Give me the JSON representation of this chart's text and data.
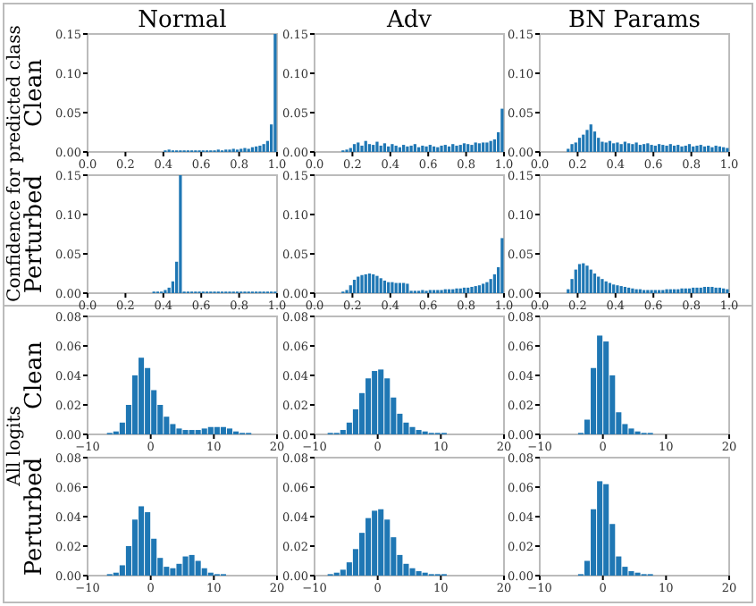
{
  "chart_data": [
    {
      "type": "histogram",
      "title": "Normal",
      "ylabel": "Clean",
      "annotations": [
        "Confidence for predicted class"
      ],
      "color": "#1f77b4",
      "bins": [
        0.4,
        0.42,
        0.44,
        0.46,
        0.48,
        0.5,
        0.52,
        0.54,
        0.56,
        0.58,
        0.6,
        0.62,
        0.64,
        0.66,
        0.68,
        0.7,
        0.72,
        0.74,
        0.76,
        0.78,
        0.8,
        0.82,
        0.84,
        0.86,
        0.88,
        0.9,
        0.92,
        0.94,
        0.96,
        0.98,
        1.0
      ],
      "values": [
        0.002,
        0.003,
        0.002,
        0.002,
        0.002,
        0.002,
        0.002,
        0.002,
        0.002,
        0.002,
        0.002,
        0.002,
        0.002,
        0.002,
        0.003,
        0.002,
        0.003,
        0.003,
        0.004,
        0.003,
        0.004,
        0.005,
        0.004,
        0.006,
        0.007,
        0.008,
        0.01,
        0.014,
        0.035,
        0.15
      ],
      "xlim": [
        0,
        1
      ],
      "ylim": [
        0,
        0.15
      ],
      "xticks": [
        {
          "value": 0,
          "label": "0.0"
        },
        {
          "value": 0.2,
          "label": "0.2"
        },
        {
          "value": 0.4,
          "label": "0.4"
        },
        {
          "value": 0.6,
          "label": "0.6"
        },
        {
          "value": 0.8,
          "label": "0.8"
        },
        {
          "value": 1,
          "label": "1.0"
        }
      ],
      "yticks": [
        {
          "value": 0,
          "label": "0.00"
        },
        {
          "value": 0.05,
          "label": "0.05"
        },
        {
          "value": 0.1,
          "label": "0.10"
        },
        {
          "value": 0.15,
          "label": "0.15"
        }
      ]
    },
    {
      "type": "histogram",
      "title": "Adv",
      "color": "#1f77b4",
      "bins": [
        0.14,
        0.16,
        0.18,
        0.2,
        0.22,
        0.24,
        0.26,
        0.28,
        0.3,
        0.32,
        0.34,
        0.36,
        0.38,
        0.4,
        0.42,
        0.44,
        0.46,
        0.48,
        0.5,
        0.52,
        0.54,
        0.56,
        0.58,
        0.6,
        0.62,
        0.64,
        0.66,
        0.68,
        0.7,
        0.72,
        0.74,
        0.76,
        0.78,
        0.8,
        0.82,
        0.84,
        0.86,
        0.88,
        0.9,
        0.92,
        0.94,
        0.96,
        0.98,
        1.0
      ],
      "values": [
        0.002,
        0.003,
        0.005,
        0.01,
        0.012,
        0.008,
        0.014,
        0.01,
        0.009,
        0.013,
        0.008,
        0.011,
        0.007,
        0.01,
        0.008,
        0.006,
        0.009,
        0.007,
        0.008,
        0.01,
        0.006,
        0.008,
        0.007,
        0.009,
        0.007,
        0.006,
        0.008,
        0.009,
        0.007,
        0.01,
        0.008,
        0.009,
        0.011,
        0.01,
        0.009,
        0.012,
        0.011,
        0.012,
        0.012,
        0.014,
        0.016,
        0.025,
        0.055
      ],
      "xlim": [
        0,
        1
      ],
      "ylim": [
        0,
        0.15
      ],
      "xticks": [
        {
          "value": 0,
          "label": "0.0"
        },
        {
          "value": 0.2,
          "label": "0.2"
        },
        {
          "value": 0.4,
          "label": "0.4"
        },
        {
          "value": 0.6,
          "label": "0.6"
        },
        {
          "value": 0.8,
          "label": "0.8"
        },
        {
          "value": 1,
          "label": "1.0"
        }
      ],
      "yticks": [
        {
          "value": 0,
          "label": "0.00"
        },
        {
          "value": 0.05,
          "label": "0.05"
        },
        {
          "value": 0.1,
          "label": "0.10"
        },
        {
          "value": 0.15,
          "label": "0.15"
        }
      ]
    },
    {
      "type": "histogram",
      "title": "BN Params",
      "color": "#1f77b4",
      "bins": [
        0.14,
        0.16,
        0.18,
        0.2,
        0.22,
        0.24,
        0.26,
        0.28,
        0.3,
        0.32,
        0.34,
        0.36,
        0.38,
        0.4,
        0.42,
        0.44,
        0.46,
        0.48,
        0.5,
        0.52,
        0.54,
        0.56,
        0.58,
        0.6,
        0.62,
        0.64,
        0.66,
        0.68,
        0.7,
        0.72,
        0.74,
        0.76,
        0.78,
        0.8,
        0.82,
        0.84,
        0.86,
        0.88,
        0.9,
        0.92,
        0.94,
        0.96,
        0.98,
        1.0
      ],
      "values": [
        0.004,
        0.01,
        0.012,
        0.018,
        0.022,
        0.028,
        0.035,
        0.026,
        0.018,
        0.013,
        0.012,
        0.014,
        0.011,
        0.012,
        0.01,
        0.013,
        0.011,
        0.01,
        0.012,
        0.009,
        0.01,
        0.011,
        0.009,
        0.008,
        0.01,
        0.009,
        0.008,
        0.01,
        0.008,
        0.009,
        0.007,
        0.008,
        0.01,
        0.007,
        0.008,
        0.009,
        0.007,
        0.008,
        0.006,
        0.008,
        0.007,
        0.006,
        0.005
      ],
      "xlim": [
        0,
        1
      ],
      "ylim": [
        0,
        0.15
      ],
      "xticks": [
        {
          "value": 0,
          "label": "0.0"
        },
        {
          "value": 0.2,
          "label": "0.2"
        },
        {
          "value": 0.4,
          "label": "0.4"
        },
        {
          "value": 0.6,
          "label": "0.6"
        },
        {
          "value": 0.8,
          "label": "0.8"
        },
        {
          "value": 1,
          "label": "1.0"
        }
      ],
      "yticks": [
        {
          "value": 0,
          "label": "0.00"
        },
        {
          "value": 0.05,
          "label": "0.05"
        },
        {
          "value": 0.1,
          "label": "0.10"
        },
        {
          "value": 0.15,
          "label": "0.15"
        }
      ]
    },
    {
      "type": "histogram",
      "ylabel": "Perturbed",
      "color": "#1f77b4",
      "bins": [
        0.34,
        0.36,
        0.38,
        0.4,
        0.42,
        0.44,
        0.46,
        0.48,
        0.5,
        0.52,
        0.54,
        0.56,
        0.58,
        0.6,
        0.62,
        0.64,
        0.66,
        0.68,
        0.7,
        0.72,
        0.74,
        0.76,
        0.78,
        0.8,
        0.82,
        0.84,
        0.86,
        0.88,
        0.9,
        0.92,
        0.94,
        0.96,
        0.98,
        1.0
      ],
      "values": [
        0.002,
        0.002,
        0.002,
        0.004,
        0.007,
        0.015,
        0.04,
        0.15,
        0.002,
        0.002,
        0.002,
        0.002,
        0.002,
        0.002,
        0.002,
        0.002,
        0.002,
        0.002,
        0.002,
        0.002,
        0.002,
        0.002,
        0.002,
        0.002,
        0.002,
        0.002,
        0.002,
        0.002,
        0.002,
        0.002,
        0.002,
        0.002,
        0.002
      ],
      "xlim": [
        0,
        1
      ],
      "ylim": [
        0,
        0.15
      ],
      "xticks": [
        {
          "value": 0,
          "label": "0.0"
        },
        {
          "value": 0.2,
          "label": "0.2"
        },
        {
          "value": 0.4,
          "label": "0.4"
        },
        {
          "value": 0.6,
          "label": "0.6"
        },
        {
          "value": 0.8,
          "label": "0.8"
        },
        {
          "value": 1,
          "label": "1.0"
        }
      ],
      "yticks": [
        {
          "value": 0,
          "label": "0.00"
        },
        {
          "value": 0.05,
          "label": "0.05"
        },
        {
          "value": 0.1,
          "label": "0.10"
        },
        {
          "value": 0.15,
          "label": "0.15"
        }
      ]
    },
    {
      "type": "histogram",
      "color": "#1f77b4",
      "bins": [
        0.14,
        0.16,
        0.18,
        0.2,
        0.22,
        0.24,
        0.26,
        0.28,
        0.3,
        0.32,
        0.34,
        0.36,
        0.38,
        0.4,
        0.42,
        0.44,
        0.46,
        0.48,
        0.5,
        0.52,
        0.54,
        0.56,
        0.58,
        0.6,
        0.62,
        0.64,
        0.66,
        0.68,
        0.7,
        0.72,
        0.74,
        0.76,
        0.78,
        0.8,
        0.82,
        0.84,
        0.86,
        0.88,
        0.9,
        0.92,
        0.94,
        0.96,
        0.98,
        1.0
      ],
      "values": [
        0.002,
        0.004,
        0.01,
        0.017,
        0.021,
        0.023,
        0.024,
        0.025,
        0.024,
        0.022,
        0.019,
        0.016,
        0.014,
        0.014,
        0.013,
        0.013,
        0.013,
        0.012,
        0.003,
        0.003,
        0.003,
        0.004,
        0.003,
        0.004,
        0.004,
        0.004,
        0.004,
        0.005,
        0.005,
        0.005,
        0.006,
        0.006,
        0.007,
        0.007,
        0.008,
        0.009,
        0.01,
        0.012,
        0.014,
        0.018,
        0.024,
        0.033,
        0.07
      ],
      "xlim": [
        0,
        1
      ],
      "ylim": [
        0,
        0.15
      ],
      "xticks": [
        {
          "value": 0,
          "label": "0.0"
        },
        {
          "value": 0.2,
          "label": "0.2"
        },
        {
          "value": 0.4,
          "label": "0.4"
        },
        {
          "value": 0.6,
          "label": "0.6"
        },
        {
          "value": 0.8,
          "label": "0.8"
        },
        {
          "value": 1,
          "label": "1.0"
        }
      ],
      "yticks": [
        {
          "value": 0,
          "label": "0.00"
        },
        {
          "value": 0.05,
          "label": "0.05"
        },
        {
          "value": 0.1,
          "label": "0.10"
        },
        {
          "value": 0.15,
          "label": "0.15"
        }
      ]
    },
    {
      "type": "histogram",
      "color": "#1f77b4",
      "bins": [
        0.14,
        0.16,
        0.18,
        0.2,
        0.22,
        0.24,
        0.26,
        0.28,
        0.3,
        0.32,
        0.34,
        0.36,
        0.38,
        0.4,
        0.42,
        0.44,
        0.46,
        0.48,
        0.5,
        0.52,
        0.54,
        0.56,
        0.58,
        0.6,
        0.62,
        0.64,
        0.66,
        0.68,
        0.7,
        0.72,
        0.74,
        0.76,
        0.78,
        0.8,
        0.82,
        0.84,
        0.86,
        0.88,
        0.9,
        0.92,
        0.94,
        0.96,
        0.98,
        1.0
      ],
      "values": [
        0.005,
        0.018,
        0.03,
        0.037,
        0.038,
        0.035,
        0.03,
        0.025,
        0.021,
        0.018,
        0.015,
        0.013,
        0.011,
        0.01,
        0.009,
        0.008,
        0.007,
        0.006,
        0.005,
        0.005,
        0.004,
        0.004,
        0.004,
        0.004,
        0.004,
        0.004,
        0.005,
        0.005,
        0.005,
        0.005,
        0.006,
        0.006,
        0.006,
        0.007,
        0.007,
        0.007,
        0.008,
        0.008,
        0.008,
        0.007,
        0.007,
        0.006,
        0.005
      ],
      "xlim": [
        0,
        1
      ],
      "ylim": [
        0,
        0.15
      ],
      "xticks": [
        {
          "value": 0,
          "label": "0.0"
        },
        {
          "value": 0.2,
          "label": "0.2"
        },
        {
          "value": 0.4,
          "label": "0.4"
        },
        {
          "value": 0.6,
          "label": "0.6"
        },
        {
          "value": 0.8,
          "label": "0.8"
        },
        {
          "value": 1,
          "label": "1.0"
        }
      ],
      "yticks": [
        {
          "value": 0,
          "label": "0.00"
        },
        {
          "value": 0.05,
          "label": "0.05"
        },
        {
          "value": 0.1,
          "label": "0.10"
        },
        {
          "value": 0.15,
          "label": "0.15"
        }
      ]
    },
    {
      "type": "histogram",
      "ylabel": "Clean",
      "annotations": [
        "All logits"
      ],
      "color": "#1f77b4",
      "bins": [
        -7,
        -6,
        -5,
        -4,
        -3,
        -2,
        -1,
        0,
        1,
        2,
        3,
        4,
        5,
        6,
        7,
        8,
        9,
        10,
        11,
        12,
        13,
        14,
        15,
        16
      ],
      "values": [
        0.001,
        0.002,
        0.008,
        0.02,
        0.04,
        0.052,
        0.045,
        0.03,
        0.02,
        0.012,
        0.007,
        0.004,
        0.003,
        0.003,
        0.003,
        0.004,
        0.005,
        0.005,
        0.005,
        0.004,
        0.002,
        0.001,
        0.001
      ],
      "xlim": [
        -10,
        20
      ],
      "ylim": [
        0,
        0.08
      ],
      "xticks": [
        {
          "value": -10,
          "label": "−10"
        },
        0,
        10,
        20
      ],
      "yticks": [
        {
          "value": 0,
          "label": "0.00"
        },
        {
          "value": 0.02,
          "label": "0.02"
        },
        {
          "value": 0.04,
          "label": "0.04"
        },
        {
          "value": 0.06,
          "label": "0.06"
        },
        {
          "value": 0.08,
          "label": "0.08"
        }
      ]
    },
    {
      "type": "histogram",
      "color": "#1f77b4",
      "bins": [
        -8,
        -7,
        -6,
        -5,
        -4,
        -3,
        -2,
        -1,
        0,
        1,
        2,
        3,
        4,
        5,
        6,
        7,
        8,
        9,
        10,
        11
      ],
      "values": [
        0.001,
        0.001,
        0.003,
        0.008,
        0.017,
        0.028,
        0.038,
        0.043,
        0.044,
        0.038,
        0.025,
        0.014,
        0.008,
        0.005,
        0.003,
        0.002,
        0.001,
        0.001,
        0.001
      ],
      "xlim": [
        -10,
        20
      ],
      "ylim": [
        0,
        0.08
      ],
      "xticks": [
        {
          "value": -10,
          "label": "−10"
        },
        0,
        10,
        20
      ],
      "yticks": [
        {
          "value": 0,
          "label": "0.00"
        },
        {
          "value": 0.02,
          "label": "0.02"
        },
        {
          "value": 0.04,
          "label": "0.04"
        },
        {
          "value": 0.06,
          "label": "0.06"
        },
        {
          "value": 0.08,
          "label": "0.08"
        }
      ]
    },
    {
      "type": "histogram",
      "color": "#1f77b4",
      "bins": [
        -4,
        -3,
        -2,
        -1,
        0,
        1,
        2,
        3,
        4,
        5,
        6,
        7,
        8
      ],
      "values": [
        0.001,
        0.01,
        0.045,
        0.067,
        0.063,
        0.04,
        0.015,
        0.007,
        0.004,
        0.002,
        0.001,
        0.001
      ],
      "xlim": [
        -10,
        20
      ],
      "ylim": [
        0,
        0.08
      ],
      "xticks": [
        {
          "value": -10,
          "label": "−10"
        },
        0,
        10,
        20
      ],
      "yticks": [
        {
          "value": 0,
          "label": "0.00"
        },
        {
          "value": 0.02,
          "label": "0.02"
        },
        {
          "value": 0.04,
          "label": "0.04"
        },
        {
          "value": 0.06,
          "label": "0.06"
        },
        {
          "value": 0.08,
          "label": "0.08"
        }
      ]
    },
    {
      "type": "histogram",
      "ylabel": "Perturbed",
      "color": "#1f77b4",
      "bins": [
        -7,
        -6,
        -5,
        -4,
        -3,
        -2,
        -1,
        0,
        1,
        2,
        3,
        4,
        5,
        6,
        7,
        8,
        9,
        10,
        11,
        12
      ],
      "values": [
        0.001,
        0.002,
        0.007,
        0.02,
        0.038,
        0.047,
        0.043,
        0.025,
        0.012,
        0.006,
        0.005,
        0.008,
        0.013,
        0.014,
        0.01,
        0.005,
        0.002,
        0.001,
        0.001
      ],
      "xlim": [
        -10,
        20
      ],
      "ylim": [
        0,
        0.08
      ],
      "xticks": [
        {
          "value": -10,
          "label": "−10"
        },
        0,
        10,
        20
      ],
      "yticks": [
        {
          "value": 0,
          "label": "0.00"
        },
        {
          "value": 0.02,
          "label": "0.02"
        },
        {
          "value": 0.04,
          "label": "0.04"
        },
        {
          "value": 0.06,
          "label": "0.06"
        },
        {
          "value": 0.08,
          "label": "0.08"
        }
      ]
    },
    {
      "type": "histogram",
      "color": "#1f77b4",
      "bins": [
        -8,
        -7,
        -6,
        -5,
        -4,
        -3,
        -2,
        -1,
        0,
        1,
        2,
        3,
        4,
        5,
        6,
        7,
        8,
        9,
        10,
        11
      ],
      "values": [
        0.001,
        0.002,
        0.004,
        0.009,
        0.018,
        0.029,
        0.039,
        0.044,
        0.045,
        0.038,
        0.026,
        0.014,
        0.008,
        0.005,
        0.003,
        0.002,
        0.001,
        0.001,
        0.001
      ],
      "xlim": [
        -10,
        20
      ],
      "ylim": [
        0,
        0.08
      ],
      "xticks": [
        {
          "value": -10,
          "label": "−10"
        },
        0,
        10,
        20
      ],
      "yticks": [
        {
          "value": 0,
          "label": "0.00"
        },
        {
          "value": 0.02,
          "label": "0.02"
        },
        {
          "value": 0.04,
          "label": "0.04"
        },
        {
          "value": 0.06,
          "label": "0.06"
        },
        {
          "value": 0.08,
          "label": "0.08"
        }
      ]
    },
    {
      "type": "histogram",
      "color": "#1f77b4",
      "bins": [
        -4,
        -3,
        -2,
        -1,
        0,
        1,
        2,
        3,
        4,
        5,
        6,
        7,
        8
      ],
      "values": [
        0.001,
        0.01,
        0.045,
        0.064,
        0.062,
        0.035,
        0.013,
        0.006,
        0.003,
        0.002,
        0.001,
        0.001
      ],
      "xlim": [
        -10,
        20
      ],
      "ylim": [
        0,
        0.08
      ],
      "xticks": [
        {
          "value": -10,
          "label": "−10"
        },
        0,
        10,
        20
      ],
      "yticks": [
        {
          "value": 0,
          "label": "0.00"
        },
        {
          "value": 0.02,
          "label": "0.02"
        },
        {
          "value": 0.04,
          "label": "0.04"
        },
        {
          "value": 0.06,
          "label": "0.06"
        },
        {
          "value": 0.08,
          "label": "0.08"
        }
      ]
    }
  ]
}
